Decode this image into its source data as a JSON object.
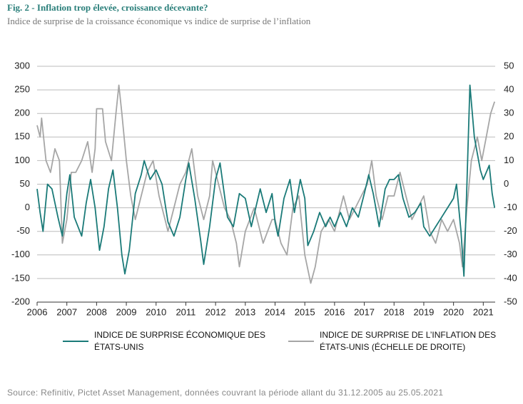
{
  "chart_data": {
    "type": "line",
    "title": "Fig. 2 - Inflation trop élevée, croissance décevante?",
    "subtitle": "Indice de surprise de la croissance économique vs indice de surprise de l’inflation",
    "source": "Source: Refinitiv, Pictet Asset Management, données couvrant la période allant du 31.12.2005 au 25.05.2021",
    "xlim": [
      2006,
      2021.4
    ],
    "xticks": [
      2006,
      2007,
      2008,
      2009,
      2010,
      2011,
      2012,
      2013,
      2014,
      2015,
      2016,
      2017,
      2018,
      2019,
      2020,
      2021
    ],
    "ylim": [
      -200,
      300
    ],
    "yticks": [
      -200,
      -150,
      -100,
      -50,
      0,
      50,
      100,
      150,
      200,
      250,
      300
    ],
    "y2lim": [
      -50,
      50
    ],
    "y2ticks": [
      -50,
      -40,
      -30,
      -20,
      -10,
      0,
      10,
      20,
      30,
      40,
      50
    ],
    "grid": true,
    "series": [
      {
        "name": "INDICE DE SURPRISE ÉCONOMIQUE DES ÉTATS-UNIS",
        "color": "#1a7a78",
        "axis": "y",
        "x": [
          2006.0,
          2006.1,
          2006.2,
          2006.35,
          2006.5,
          2006.7,
          2006.85,
          2007.0,
          2007.1,
          2007.25,
          2007.5,
          2007.65,
          2007.8,
          2007.95,
          2008.1,
          2008.25,
          2008.4,
          2008.55,
          2008.7,
          2008.85,
          2008.95,
          2009.1,
          2009.3,
          2009.5,
          2009.6,
          2009.8,
          2010.0,
          2010.2,
          2010.4,
          2010.6,
          2010.8,
          2011.0,
          2011.1,
          2011.3,
          2011.5,
          2011.6,
          2011.8,
          2012.0,
          2012.15,
          2012.4,
          2012.6,
          2012.8,
          2013.0,
          2013.2,
          2013.5,
          2013.7,
          2013.9,
          2014.0,
          2014.1,
          2014.3,
          2014.5,
          2014.65,
          2014.85,
          2015.0,
          2015.1,
          2015.3,
          2015.5,
          2015.7,
          2015.85,
          2016.0,
          2016.2,
          2016.4,
          2016.6,
          2016.8,
          2017.0,
          2017.15,
          2017.3,
          2017.5,
          2017.7,
          2017.85,
          2018.0,
          2018.15,
          2018.3,
          2018.5,
          2018.7,
          2018.9,
          2019.0,
          2019.2,
          2019.4,
          2019.6,
          2019.8,
          2020.0,
          2020.1,
          2020.25,
          2020.35,
          2020.45,
          2020.55,
          2020.7,
          2020.9,
          2021.0,
          2021.2,
          2021.3,
          2021.38
        ],
        "values": [
          40,
          -10,
          -50,
          50,
          40,
          -20,
          -60,
          30,
          70,
          -20,
          -60,
          10,
          60,
          0,
          -90,
          -40,
          40,
          80,
          0,
          -100,
          -140,
          -90,
          30,
          70,
          100,
          60,
          80,
          50,
          -30,
          -60,
          -20,
          60,
          95,
          20,
          -70,
          -120,
          -40,
          60,
          95,
          -20,
          -40,
          30,
          20,
          -40,
          40,
          -10,
          30,
          -30,
          -60,
          20,
          60,
          -10,
          60,
          20,
          -80,
          -50,
          -10,
          -40,
          -20,
          -40,
          -10,
          -40,
          0,
          -20,
          30,
          70,
          30,
          -40,
          40,
          60,
          60,
          70,
          20,
          -20,
          -10,
          10,
          -40,
          -60,
          -40,
          -20,
          0,
          20,
          50,
          -50,
          -145,
          50,
          260,
          150,
          80,
          60,
          90,
          30,
          0
        ]
      },
      {
        "name": "INDICE DE SURPRISE DE L’INFLATION DES ÉTATS-UNIS (ÉCHELLE DE DROITE)",
        "color": "#a6a6a6",
        "axis": "y2",
        "x": [
          2006.0,
          2006.1,
          2006.15,
          2006.3,
          2006.45,
          2006.6,
          2006.75,
          2006.85,
          2007.0,
          2007.15,
          2007.3,
          2007.5,
          2007.7,
          2007.85,
          2007.95,
          2008.0,
          2008.2,
          2008.3,
          2008.5,
          2008.65,
          2008.75,
          2008.85,
          2009.0,
          2009.15,
          2009.3,
          2009.5,
          2009.7,
          2009.9,
          2010.1,
          2010.3,
          2010.4,
          2010.6,
          2010.8,
          2011.0,
          2011.2,
          2011.4,
          2011.6,
          2011.8,
          2011.9,
          2012.1,
          2012.3,
          2012.5,
          2012.7,
          2012.8,
          2013.0,
          2013.3,
          2013.6,
          2013.9,
          2014.0,
          2014.2,
          2014.4,
          2014.6,
          2014.8,
          2015.0,
          2015.2,
          2015.35,
          2015.55,
          2015.8,
          2016.0,
          2016.3,
          2016.5,
          2016.7,
          2016.9,
          2017.1,
          2017.25,
          2017.4,
          2017.6,
          2017.8,
          2018.0,
          2018.2,
          2018.4,
          2018.6,
          2018.8,
          2019.0,
          2019.2,
          2019.4,
          2019.6,
          2019.8,
          2020.0,
          2020.2,
          2020.3,
          2020.45,
          2020.6,
          2020.8,
          2020.95,
          2021.1,
          2021.25,
          2021.38
        ],
        "values": [
          25,
          20,
          28,
          10,
          5,
          15,
          10,
          -25,
          -15,
          5,
          5,
          10,
          18,
          5,
          15,
          32,
          32,
          18,
          10,
          30,
          42,
          30,
          10,
          -5,
          -15,
          -5,
          5,
          10,
          -5,
          -15,
          -20,
          -10,
          0,
          5,
          15,
          -5,
          -15,
          -5,
          10,
          0,
          -10,
          -15,
          -25,
          -35,
          -20,
          -10,
          -25,
          -15,
          -15,
          -25,
          -30,
          -10,
          -5,
          -30,
          -42,
          -35,
          -20,
          -15,
          -20,
          -5,
          -15,
          -10,
          -5,
          0,
          10,
          -5,
          -15,
          -5,
          -5,
          5,
          -5,
          -15,
          -10,
          -5,
          -20,
          -25,
          -15,
          -20,
          -15,
          -25,
          -35,
          -10,
          10,
          20,
          10,
          20,
          30,
          35
        ]
      }
    ]
  }
}
